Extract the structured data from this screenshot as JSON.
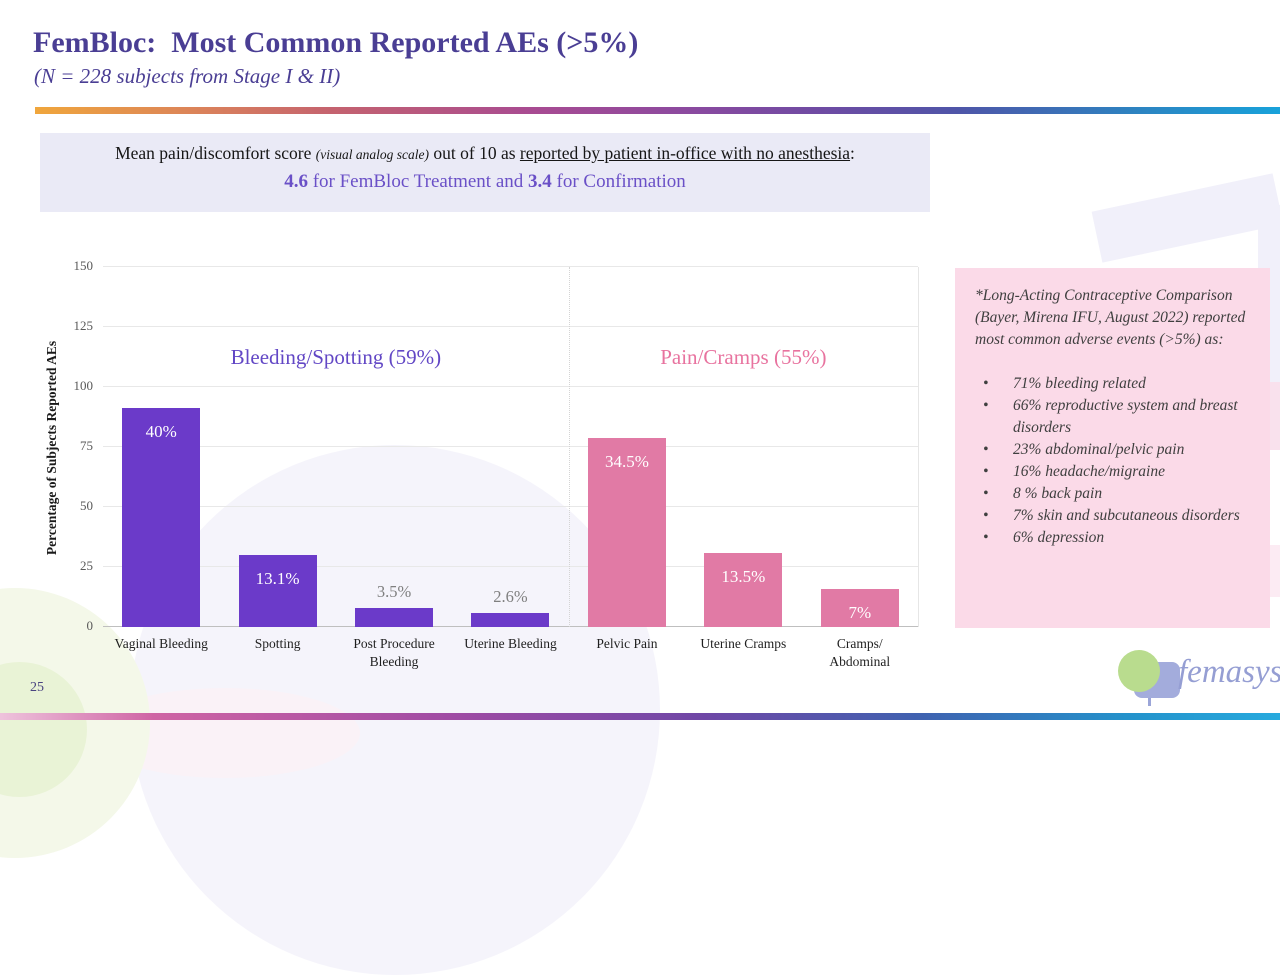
{
  "slide": {
    "title": "FemBloc:  Most Common Reported AEs (>5%)",
    "subtitle": "(N = 228 subjects from Stage I & II)",
    "page_number": "25"
  },
  "info_box": {
    "line1_part1": "Mean pain/discomfort score ",
    "line1_small": "(visual analog scale)",
    "line1_part2": " out of 10 as ",
    "line1_underlined": "reported by patient in-office with no anesthesia",
    "line1_end": ":",
    "line2_value1": "4.6",
    "line2_mid": " for FemBloc Treatment and ",
    "line2_value2": "3.4",
    "line2_end": " for Confirmation"
  },
  "chart_data": {
    "type": "bar",
    "title": "",
    "xlabel": "",
    "ylabel": "Percentage of Subjects Reported AEs",
    "ylim": [
      0,
      150
    ],
    "yticks": [
      0,
      25,
      50,
      75,
      100,
      125,
      150
    ],
    "grid": "horizontal",
    "categories": [
      "Vaginal Bleeding",
      "Spotting",
      "Post Procedure\nBleeding",
      "Uterine Bleeding",
      "Pelvic Pain",
      "Uterine Cramps",
      "Cramps/\nAbdominal"
    ],
    "values": [
      91.2,
      29.9,
      8,
      5.9,
      78.7,
      30.8,
      16
    ],
    "value_labels": [
      "40%",
      "13.1%",
      "3.5%",
      "2.6%",
      "34.5%",
      "13.5%",
      "7%"
    ],
    "label_styles": [
      "inside",
      "inside",
      "above",
      "above",
      "inside",
      "inside",
      "inside"
    ],
    "note": "bar heights are subject counts of N=228; data labels are percentages",
    "groups": [
      {
        "label": "Bleeding/Spotting (59%)",
        "span": [
          0,
          3
        ],
        "color": "#6b3ac9",
        "label_color": "#6247c5"
      },
      {
        "label": "Pain/Cramps (55%)",
        "span": [
          4,
          6
        ],
        "color": "#e17aa5",
        "label_color": "#e8739f"
      }
    ]
  },
  "sidebar": {
    "intro": "*Long-Acting Contraceptive Comparison (Bayer, Mirena IFU, August 2022) reported most common adverse events (>5%) as:",
    "bullet_glyph": "•",
    "bullets": [
      "71% bleeding related",
      "66% reproductive system and breast disorders",
      "23% abdominal/pelvic pain",
      "16% headache/migraine",
      "8 % back pain",
      "7% skin and subcutaneous disorders",
      "6% depression"
    ]
  },
  "logo": {
    "text": "femasys",
    "reg": "®"
  },
  "colors": {
    "title": "#4a3e94",
    "info_box_bg": "#eaeaf6",
    "info_accent": "#6a50c7",
    "sidebar_bg": "#fbdae8",
    "bar_purple": "#6b3ac9",
    "bar_pink": "#e17aa5"
  }
}
